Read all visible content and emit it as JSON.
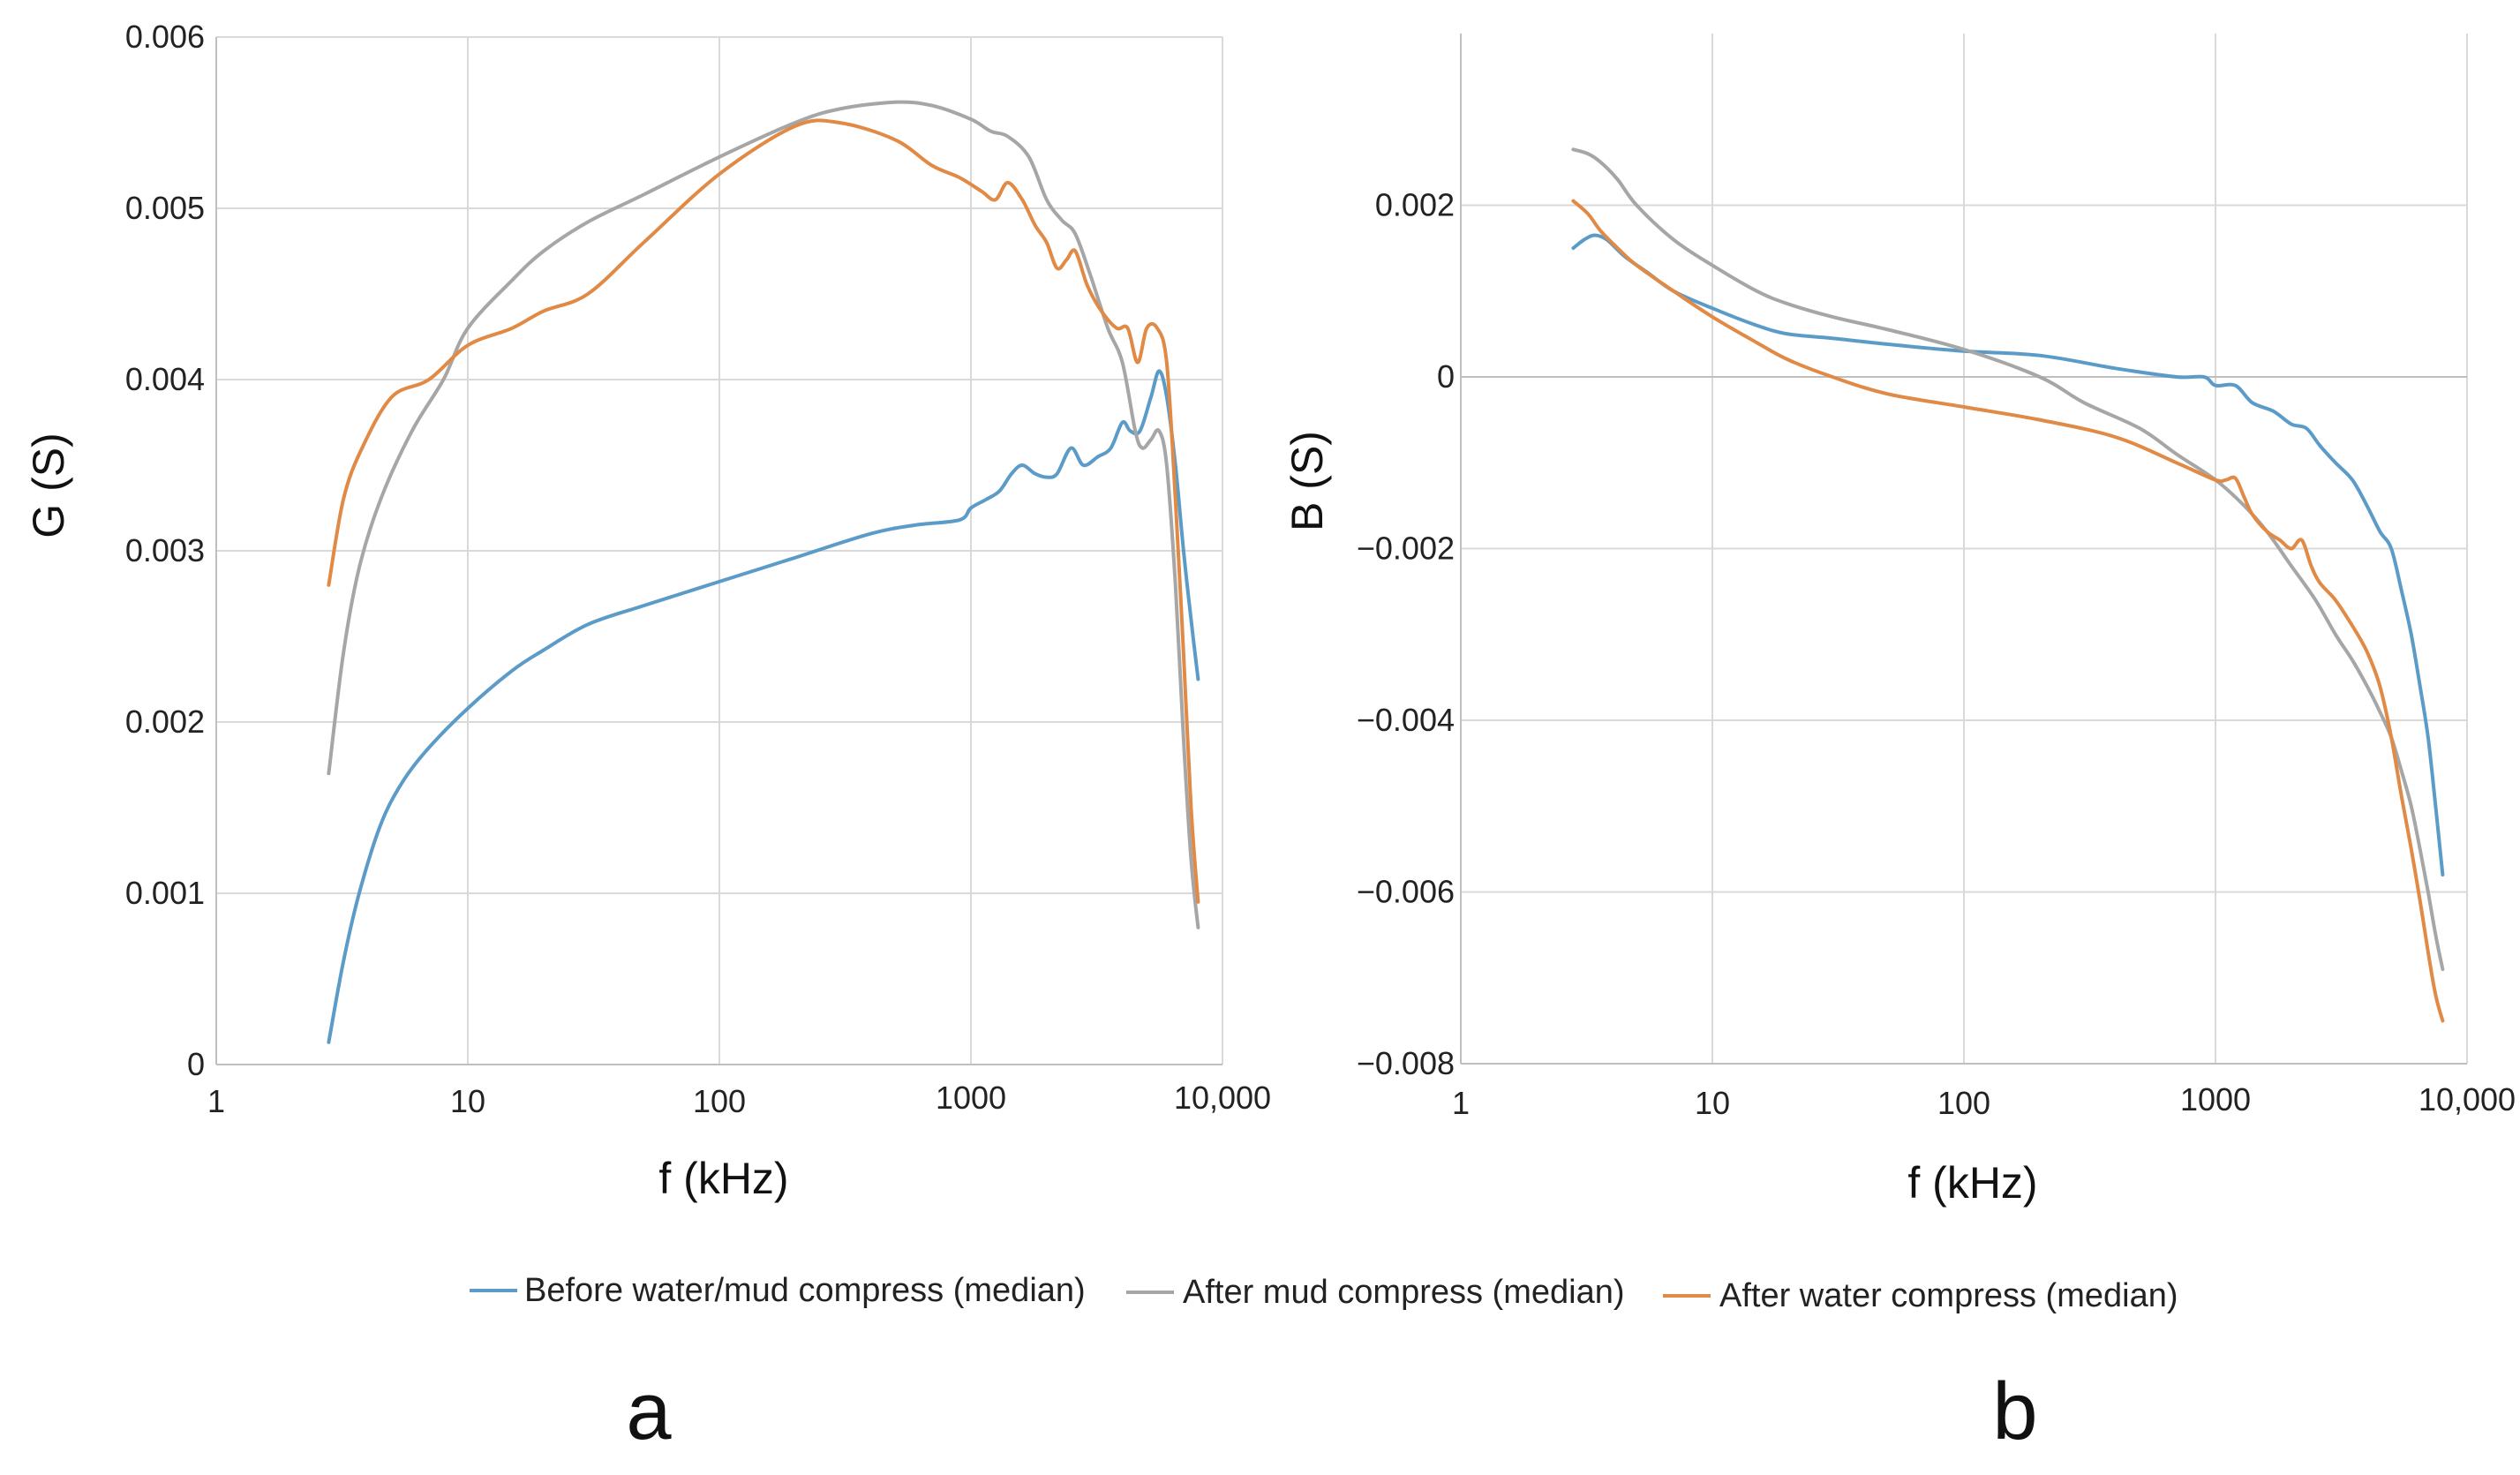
{
  "legend": [
    {
      "name": "Before water/mud compress (median)",
      "color": "#5b9bc8"
    },
    {
      "name": "After mud compress (median)",
      "color": "#a6a6a6"
    },
    {
      "name": "After water compress (median)",
      "color": "#e08a45"
    }
  ],
  "chart_data": [
    {
      "type": "line",
      "panel": "a",
      "xlabel": "f (kHz)",
      "ylabel": "G (S)",
      "xscale": "log",
      "xlim": [
        1,
        10000
      ],
      "ylim": [
        0,
        0.006
      ],
      "xticks": [
        {
          "value": 1,
          "label": "1"
        },
        {
          "value": 10,
          "label": "10"
        },
        {
          "value": 100,
          "label": "100"
        },
        {
          "value": 1000,
          "label": "1000"
        },
        {
          "value": 10000,
          "label": "10,000"
        }
      ],
      "yticks": [
        {
          "value": 0,
          "label": "0"
        },
        {
          "value": 0.001,
          "label": "0.001"
        },
        {
          "value": 0.002,
          "label": "0.002"
        },
        {
          "value": 0.003,
          "label": "0.003"
        },
        {
          "value": 0.004,
          "label": "0.004"
        },
        {
          "value": 0.005,
          "label": "0.005"
        },
        {
          "value": 0.006,
          "label": "0.006"
        }
      ],
      "series": [
        {
          "name": "Before water/mud compress (median)",
          "color": "#5b9bc8",
          "x": [
            2.8,
            3.2,
            3.7,
            4.5,
            5.5,
            7,
            10,
            15,
            20,
            30,
            50,
            100,
            200,
            400,
            600,
            900,
            1000,
            1150,
            1300,
            1450,
            1600,
            1800,
            2000,
            2200,
            2500,
            2800,
            3200,
            3600,
            4000,
            4300,
            4700,
            5200,
            5600,
            6000,
            6500,
            7000,
            7500,
            8000
          ],
          "values": [
            0.00013,
            0.0006,
            0.001,
            0.0014,
            0.00165,
            0.00185,
            0.00208,
            0.0023,
            0.00242,
            0.00257,
            0.00268,
            0.00282,
            0.00296,
            0.0031,
            0.00315,
            0.00318,
            0.00325,
            0.0033,
            0.00335,
            0.00345,
            0.0035,
            0.00345,
            0.00343,
            0.00345,
            0.0036,
            0.0035,
            0.00355,
            0.0036,
            0.00375,
            0.0037,
            0.0037,
            0.0039,
            0.00405,
            0.0039,
            0.0035,
            0.003,
            0.0026,
            0.00225
          ]
        },
        {
          "name": "After mud compress (median)",
          "color": "#a6a6a6",
          "x": [
            2.8,
            3.2,
            3.7,
            4.5,
            6,
            8,
            10,
            15,
            20,
            30,
            50,
            100,
            200,
            300,
            500,
            700,
            1000,
            1200,
            1400,
            1700,
            2000,
            2300,
            2600,
            3000,
            3500,
            4000,
            4500,
            4800,
            5200,
            5600,
            6000,
            6500,
            7000,
            7500,
            8000
          ],
          "values": [
            0.0017,
            0.0024,
            0.0029,
            0.0033,
            0.0037,
            0.004,
            0.0043,
            0.00458,
            0.00475,
            0.00492,
            0.00508,
            0.0053,
            0.0055,
            0.00558,
            0.00562,
            0.0056,
            0.00552,
            0.00545,
            0.00542,
            0.0053,
            0.00505,
            0.00493,
            0.00485,
            0.0046,
            0.0043,
            0.0041,
            0.0037,
            0.0036,
            0.00365,
            0.0037,
            0.0035,
            0.0028,
            0.0019,
            0.0012,
            0.0008
          ]
        },
        {
          "name": "After water compress (median)",
          "color": "#e08a45",
          "x": [
            2.8,
            3.2,
            3.8,
            5,
            7,
            10,
            15,
            20,
            30,
            50,
            100,
            200,
            300,
            500,
            700,
            900,
            1100,
            1250,
            1400,
            1600,
            1800,
            2000,
            2200,
            2400,
            2600,
            2900,
            3300,
            3800,
            4200,
            4600,
            5000,
            5500,
            6000,
            6500,
            7000,
            7500,
            8000
          ],
          "values": [
            0.0028,
            0.0033,
            0.0036,
            0.0039,
            0.004,
            0.0042,
            0.0043,
            0.0044,
            0.0045,
            0.0048,
            0.0052,
            0.00548,
            0.0055,
            0.0054,
            0.00525,
            0.00518,
            0.0051,
            0.00505,
            0.00515,
            0.00505,
            0.0049,
            0.0048,
            0.00465,
            0.0047,
            0.00475,
            0.00455,
            0.0044,
            0.0043,
            0.0043,
            0.0041,
            0.0043,
            0.0043,
            0.0041,
            0.0033,
            0.0024,
            0.0015,
            0.00095
          ]
        }
      ]
    },
    {
      "type": "line",
      "panel": "b",
      "xlabel": "f (kHz)",
      "ylabel": "B (S)",
      "xscale": "log",
      "xlim": [
        1,
        10000
      ],
      "ylim": [
        -0.008,
        0.004
      ],
      "xticks": [
        {
          "value": 1,
          "label": "1"
        },
        {
          "value": 10,
          "label": "10"
        },
        {
          "value": 100,
          "label": "100"
        },
        {
          "value": 1000,
          "label": "1000"
        },
        {
          "value": 10000,
          "label": "10,000"
        }
      ],
      "yticks": [
        {
          "value": 0.002,
          "label": "0.002"
        },
        {
          "value": 0,
          "label": "0"
        },
        {
          "value": -0.002,
          "label": "−0.002"
        },
        {
          "value": -0.004,
          "label": "−0.004"
        },
        {
          "value": -0.006,
          "label": "−0.006"
        },
        {
          "value": -0.008,
          "label": "−0.008"
        }
      ],
      "series": [
        {
          "name": "Before water/mud compress (median)",
          "color": "#5b9bc8",
          "x": [
            2.8,
            3.1,
            3.4,
            3.8,
            4.5,
            5.5,
            7,
            10,
            15,
            20,
            30,
            50,
            100,
            200,
            400,
            700,
            900,
            1000,
            1200,
            1400,
            1700,
            2000,
            2300,
            2600,
            3000,
            3500,
            4000,
            4500,
            5000,
            5500,
            6000,
            6500,
            7000,
            7500,
            8000
          ],
          "values": [
            0.0015,
            0.0016,
            0.00165,
            0.0016,
            0.0014,
            0.00122,
            0.001,
            0.0008,
            0.0006,
            0.0005,
            0.00045,
            0.00038,
            0.0003,
            0.00025,
            0.0001,
            0.0,
            0.0,
            -0.0001,
            -0.0001,
            -0.0003,
            -0.0004,
            -0.00055,
            -0.0006,
            -0.0008,
            -0.001,
            -0.0012,
            -0.0015,
            -0.0018,
            -0.002,
            -0.0025,
            -0.003,
            -0.0036,
            -0.0042,
            -0.005,
            -0.0058
          ]
        },
        {
          "name": "After mud compress (median)",
          "color": "#a6a6a6",
          "x": [
            2.8,
            3.2,
            3.6,
            4.2,
            5,
            7,
            10,
            15,
            20,
            30,
            50,
            100,
            200,
            300,
            500,
            700,
            1000,
            1300,
            1600,
            2000,
            2500,
            3000,
            3500,
            4000,
            4500,
            5000,
            5500,
            6000,
            6500,
            7000,
            7500,
            8000
          ],
          "values": [
            0.00265,
            0.0026,
            0.0025,
            0.0023,
            0.002,
            0.0016,
            0.0013,
            0.001,
            0.00085,
            0.0007,
            0.00055,
            0.00032,
            0.0,
            -0.0003,
            -0.0006,
            -0.0009,
            -0.0012,
            -0.0015,
            -0.0018,
            -0.0022,
            -0.0026,
            -0.003,
            -0.0033,
            -0.0036,
            -0.0039,
            -0.0042,
            -0.0046,
            -0.005,
            -0.0055,
            -0.006,
            -0.0065,
            -0.0069
          ]
        },
        {
          "name": "After water compress (median)",
          "color": "#e08a45",
          "x": [
            2.8,
            3.2,
            3.6,
            4.2,
            5,
            7,
            10,
            15,
            20,
            30,
            50,
            100,
            200,
            400,
            700,
            1000,
            1100,
            1200,
            1300,
            1400,
            1600,
            1800,
            2000,
            2200,
            2400,
            2600,
            3000,
            3500,
            4000,
            4500,
            5000,
            5500,
            6000,
            6500,
            7000,
            7500,
            8000
          ],
          "values": [
            0.00205,
            0.0019,
            0.0017,
            0.0015,
            0.0013,
            0.001,
            0.0007,
            0.0004,
            0.0002,
            0.0,
            -0.0002,
            -0.00035,
            -0.0005,
            -0.0007,
            -0.001,
            -0.0012,
            -0.0012,
            -0.00118,
            -0.0014,
            -0.0016,
            -0.0018,
            -0.0019,
            -0.002,
            -0.0019,
            -0.0022,
            -0.0024,
            -0.0026,
            -0.0029,
            -0.0032,
            -0.0036,
            -0.0042,
            -0.0049,
            -0.0055,
            -0.0061,
            -0.0067,
            -0.0072,
            -0.0075
          ]
        }
      ]
    }
  ]
}
